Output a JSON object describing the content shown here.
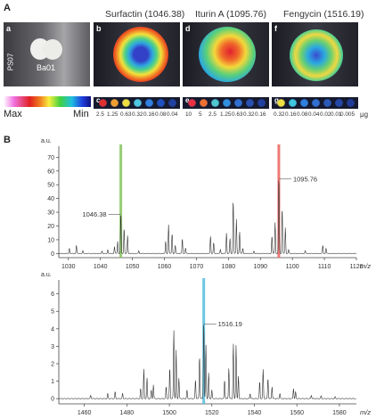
{
  "figure": {
    "panel_A": "A",
    "panel_B": "B",
    "titles": [
      "Surfactin (1046.38)",
      "Iturin A (1095.76)",
      "Fengycin (1516.19)"
    ],
    "tile_labels": [
      "a",
      "b",
      "d",
      "f"
    ],
    "strip_labels": [
      "c",
      "e",
      "g"
    ],
    "photo": {
      "side_label": "PS07",
      "colony_label": "Ba01"
    },
    "colorbar": {
      "max": "Max",
      "min": "Min"
    },
    "strips": {
      "c": [
        "2.5",
        "1.25",
        "0.63",
        "0.32",
        "0.16",
        "0.08",
        "0.04"
      ],
      "e": [
        "10",
        "5",
        "2.5",
        "1.25",
        "0.63",
        "0.32",
        "0.16"
      ],
      "g": [
        "0.32",
        "0.16",
        "0.08",
        "0.04",
        "0.02",
        "0.01",
        "0.005"
      ],
      "unit": "μg"
    }
  },
  "chart_data": [
    {
      "type": "line",
      "ylabel": "a.u.",
      "xlabel": "m/z",
      "xlim": [
        1027,
        1120
      ],
      "ylim": [
        -3,
        78
      ],
      "x_ticks": [
        1030,
        1040,
        1050,
        1060,
        1070,
        1080,
        1090,
        1100,
        1110,
        1120
      ],
      "y_ticks": [
        0,
        10,
        20,
        30,
        40,
        50,
        60,
        70
      ],
      "markers": [
        {
          "x": 1046.38,
          "label": "1046.38",
          "color": "#8cc866"
        },
        {
          "x": 1095.76,
          "label": "1095.76",
          "color": "#ee6a64"
        }
      ],
      "peaks": [
        [
          1030.3,
          4
        ],
        [
          1032.5,
          6
        ],
        [
          1034.5,
          2
        ],
        [
          1040.5,
          2
        ],
        [
          1042.3,
          3
        ],
        [
          1044.4,
          5
        ],
        [
          1045.4,
          9
        ],
        [
          1046.38,
          30
        ],
        [
          1047.4,
          19
        ],
        [
          1048.5,
          13
        ],
        [
          1052,
          2
        ],
        [
          1060.4,
          9
        ],
        [
          1061.3,
          21
        ],
        [
          1062.4,
          15
        ],
        [
          1063.4,
          6
        ],
        [
          1065.6,
          11
        ],
        [
          1066.6,
          4
        ],
        [
          1074.4,
          13
        ],
        [
          1075.4,
          8
        ],
        [
          1077.5,
          3
        ],
        [
          1079.4,
          15
        ],
        [
          1080.5,
          11
        ],
        [
          1081.5,
          40
        ],
        [
          1082.5,
          25
        ],
        [
          1083.5,
          16
        ],
        [
          1084.5,
          4
        ],
        [
          1088,
          2
        ],
        [
          1093.6,
          13
        ],
        [
          1094.6,
          23
        ],
        [
          1095.76,
          57
        ],
        [
          1096.8,
          34
        ],
        [
          1097.8,
          19
        ],
        [
          1098.8,
          3
        ],
        [
          1104,
          2
        ],
        [
          1109.5,
          6
        ],
        [
          1110.5,
          4
        ]
      ]
    },
    {
      "type": "line",
      "ylabel": "a.u.",
      "xlabel": "m/z",
      "xlim": [
        1448,
        1588
      ],
      "ylim": [
        -0.3,
        6.8
      ],
      "x_ticks": [
        1460,
        1480,
        1500,
        1520,
        1540,
        1560,
        1580
      ],
      "y_ticks": [
        0,
        1,
        2,
        3,
        4,
        5,
        6
      ],
      "markers": [
        {
          "x": 1516.19,
          "label": "1516.19",
          "color": "#5bc0de"
        }
      ],
      "peaks": [
        [
          1463,
          0.2
        ],
        [
          1471,
          0.3
        ],
        [
          1474.5,
          0.4
        ],
        [
          1478,
          0.3
        ],
        [
          1486.5,
          0.6
        ],
        [
          1488,
          1.7
        ],
        [
          1489.5,
          1.2
        ],
        [
          1491.5,
          0.5
        ],
        [
          1492.5,
          0.8
        ],
        [
          1498.5,
          0.7
        ],
        [
          1500.2,
          1.8
        ],
        [
          1502.1,
          4.0
        ],
        [
          1503.2,
          2.8
        ],
        [
          1504.5,
          1.2
        ],
        [
          1508.3,
          0.5
        ],
        [
          1512.3,
          1.1
        ],
        [
          1514.2,
          2.5
        ],
        [
          1516.19,
          4.5
        ],
        [
          1517.2,
          3.1
        ],
        [
          1518.5,
          1.5
        ],
        [
          1520,
          0.5
        ],
        [
          1526,
          1.1
        ],
        [
          1528,
          1.8
        ],
        [
          1530.1,
          3.2
        ],
        [
          1531.4,
          3.1
        ],
        [
          1532.5,
          1.3
        ],
        [
          1538,
          0.3
        ],
        [
          1542.5,
          1.0
        ],
        [
          1544.1,
          1.7
        ],
        [
          1546.4,
          1.2
        ],
        [
          1548.3,
          0.7
        ],
        [
          1552,
          0.3
        ],
        [
          1558.4,
          0.6
        ],
        [
          1559.4,
          0.4
        ],
        [
          1566.8,
          0.2
        ],
        [
          1571.4,
          0.15
        ],
        [
          1578,
          0.1
        ]
      ]
    }
  ]
}
